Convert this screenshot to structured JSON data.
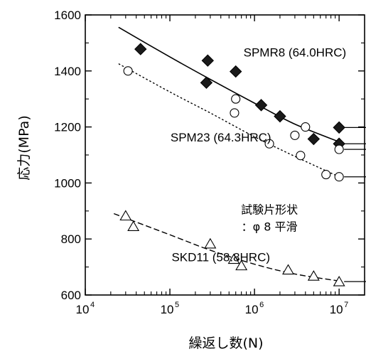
{
  "chart_data": {
    "type": "scatter",
    "xlabel": "繰返し数(N)",
    "ylabel": "応力(MPa)",
    "xscale": "log",
    "xlim": [
      10000,
      20000000
    ],
    "ylim": [
      600,
      1600
    ],
    "xticks": [
      {
        "value": 10000,
        "base": "10",
        "exp": "4"
      },
      {
        "value": 100000,
        "base": "10",
        "exp": "5"
      },
      {
        "value": 1000000,
        "base": "10",
        "exp": "6"
      },
      {
        "value": 10000000,
        "base": "10",
        "exp": "7"
      }
    ],
    "yticks": [
      {
        "value": 600,
        "label": "600"
      },
      {
        "value": 800,
        "label": "800"
      },
      {
        "value": 1000,
        "label": "1000"
      },
      {
        "value": 1200,
        "label": "1200"
      },
      {
        "value": 1400,
        "label": "1400"
      },
      {
        "value": 1600,
        "label": "1600"
      }
    ],
    "series": [
      {
        "name": "SPMR8 (64.0HRC)",
        "marker": "filled-diamond",
        "line": "solid",
        "points": [
          {
            "x": 45000,
            "y": 1478
          },
          {
            "x": 280000,
            "y": 1437
          },
          {
            "x": 270000,
            "y": 1358
          },
          {
            "x": 600000,
            "y": 1398
          },
          {
            "x": 1200000,
            "y": 1278
          },
          {
            "x": 2000000,
            "y": 1238
          },
          {
            "x": 5000000,
            "y": 1157
          },
          {
            "x": 10000000,
            "y": 1198,
            "runout": true
          },
          {
            "x": 10000000,
            "y": 1140,
            "runout": true
          }
        ],
        "fit": [
          [
            25000,
            1555
          ],
          [
            100000,
            1450
          ],
          [
            300000,
            1370
          ],
          [
            1000000,
            1285
          ],
          [
            3000000,
            1210
          ],
          [
            10000000,
            1147
          ]
        ]
      },
      {
        "name": "SPM23 (64.3HRC)",
        "marker": "open-circle",
        "line": "dotted",
        "points": [
          {
            "x": 32000,
            "y": 1400
          },
          {
            "x": 600000,
            "y": 1300
          },
          {
            "x": 580000,
            "y": 1250
          },
          {
            "x": 1500000,
            "y": 1140
          },
          {
            "x": 3000000,
            "y": 1170
          },
          {
            "x": 4000000,
            "y": 1200
          },
          {
            "x": 3500000,
            "y": 1098
          },
          {
            "x": 7000000,
            "y": 1030
          },
          {
            "x": 10000000,
            "y": 1120,
            "runout": true
          },
          {
            "x": 10000000,
            "y": 1022,
            "runout": true
          }
        ],
        "fit": [
          [
            25000,
            1425
          ],
          [
            100000,
            1325
          ],
          [
            300000,
            1250
          ],
          [
            1000000,
            1165
          ],
          [
            3000000,
            1095
          ],
          [
            10000000,
            1022
          ]
        ]
      },
      {
        "name": "SKD11 (58.8HRC)",
        "marker": "open-triangle",
        "line": "dashed",
        "points": [
          {
            "x": 30000,
            "y": 883
          },
          {
            "x": 37000,
            "y": 845
          },
          {
            "x": 300000,
            "y": 783
          },
          {
            "x": 570000,
            "y": 728
          },
          {
            "x": 700000,
            "y": 705
          },
          {
            "x": 2500000,
            "y": 690
          },
          {
            "x": 5000000,
            "y": 668
          },
          {
            "x": 10000000,
            "y": 648,
            "runout": true
          }
        ],
        "fit": [
          [
            22000,
            890
          ],
          [
            100000,
            815
          ],
          [
            300000,
            760
          ],
          [
            1000000,
            710
          ],
          [
            3000000,
            675
          ],
          [
            10000000,
            650
          ]
        ]
      }
    ],
    "annotations": [
      {
        "text": "SPMR8 (64.0HRC)",
        "x": 3000000,
        "y": 1452
      },
      {
        "text": "SPM23 (64.3HRC)",
        "x": 400000,
        "y": 1148
      },
      {
        "text": "SKD11 (58.8HRC)",
        "x": 400000,
        "y": 720
      },
      {
        "text": "試験片形状",
        "x": 1500000,
        "y": 890
      },
      {
        "text": "：φ 8 平滑",
        "x": 1500000,
        "y": 830
      }
    ],
    "colors": {
      "ink": "#000000",
      "marker_fill": "#1a1a1a"
    }
  }
}
